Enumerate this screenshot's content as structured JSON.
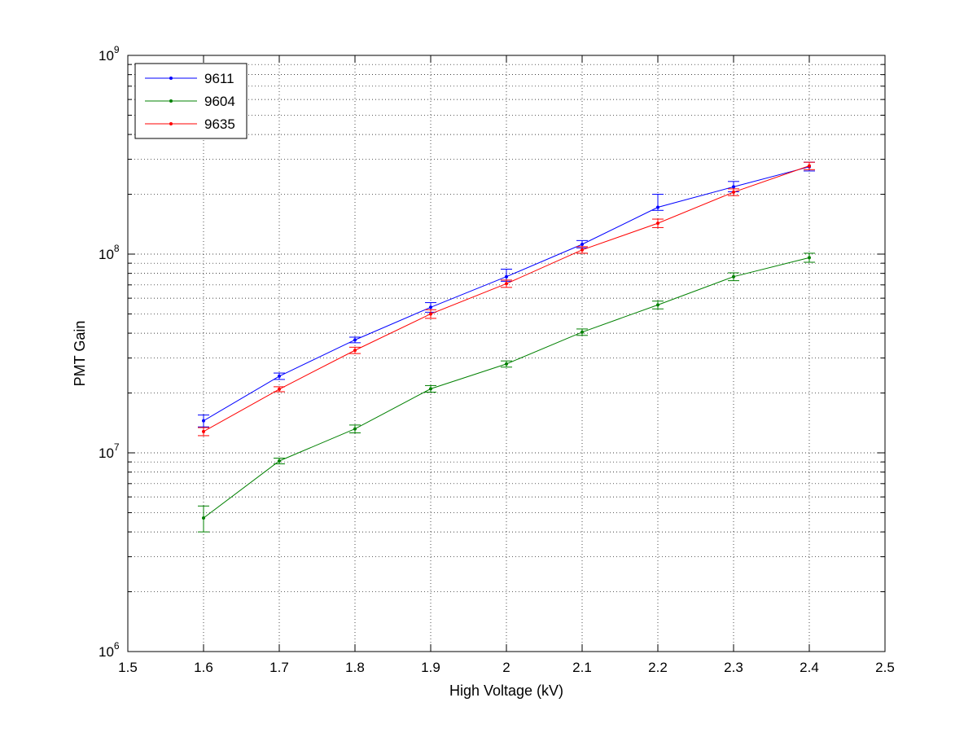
{
  "chart_data": {
    "type": "line",
    "title": "",
    "xlabel": "High Voltage (kV)",
    "ylabel": "PMT Gain",
    "x_ticks": [
      "1.5",
      "1.6",
      "1.7",
      "1.8",
      "1.9",
      "2",
      "2.1",
      "2.2",
      "2.3",
      "2.4",
      "2.5"
    ],
    "y_ticks": [
      {
        "base": "10",
        "exp": "6",
        "value": 1000000
      },
      {
        "base": "10",
        "exp": "7",
        "value": 10000000
      },
      {
        "base": "10",
        "exp": "8",
        "value": 100000000
      },
      {
        "base": "10",
        "exp": "9",
        "value": 1000000000
      }
    ],
    "xlim": [
      1.5,
      2.5
    ],
    "ylim": [
      1000000,
      1000000000
    ],
    "y_scale": "log",
    "grid": true,
    "legend_position": "top-left",
    "x": [
      1.6,
      1.7,
      1.8,
      1.9,
      2.0,
      2.1,
      2.2,
      2.3,
      2.4
    ],
    "series": [
      {
        "name": "9611",
        "color": "#0000ff",
        "values": [
          14500000,
          24300000,
          37000000,
          54000000,
          77000000,
          112000000,
          172000000,
          218000000,
          275000000
        ],
        "err_low": [
          1000000,
          900000,
          1200000,
          3000000,
          4000000,
          4500000,
          6000000,
          12000000,
          13000000
        ],
        "err_high": [
          1000000,
          900000,
          1200000,
          3000000,
          7000000,
          5000000,
          28000000,
          14000000,
          15000000
        ]
      },
      {
        "name": "9604",
        "color": "#008000",
        "values": [
          4700000,
          9100000,
          13200000,
          21000000,
          28000000,
          40500000,
          55500000,
          77000000,
          96000000
        ],
        "err_low": [
          700000,
          300000,
          600000,
          800000,
          1000000,
          1500000,
          2500000,
          3500000,
          5000000
        ],
        "err_high": [
          700000,
          300000,
          600000,
          800000,
          1000000,
          1500000,
          2500000,
          3500000,
          5000000
        ]
      },
      {
        "name": "9635",
        "color": "#ff0000",
        "values": [
          12800000,
          20900000,
          32800000,
          50000000,
          71000000,
          105000000,
          143000000,
          205000000,
          278000000
        ],
        "err_low": [
          600000,
          600000,
          1200000,
          2500000,
          3000000,
          4000000,
          7000000,
          8000000,
          12000000
        ],
        "err_high": [
          600000,
          600000,
          1200000,
          2500000,
          3000000,
          4000000,
          7000000,
          8000000,
          12000000
        ]
      }
    ]
  }
}
